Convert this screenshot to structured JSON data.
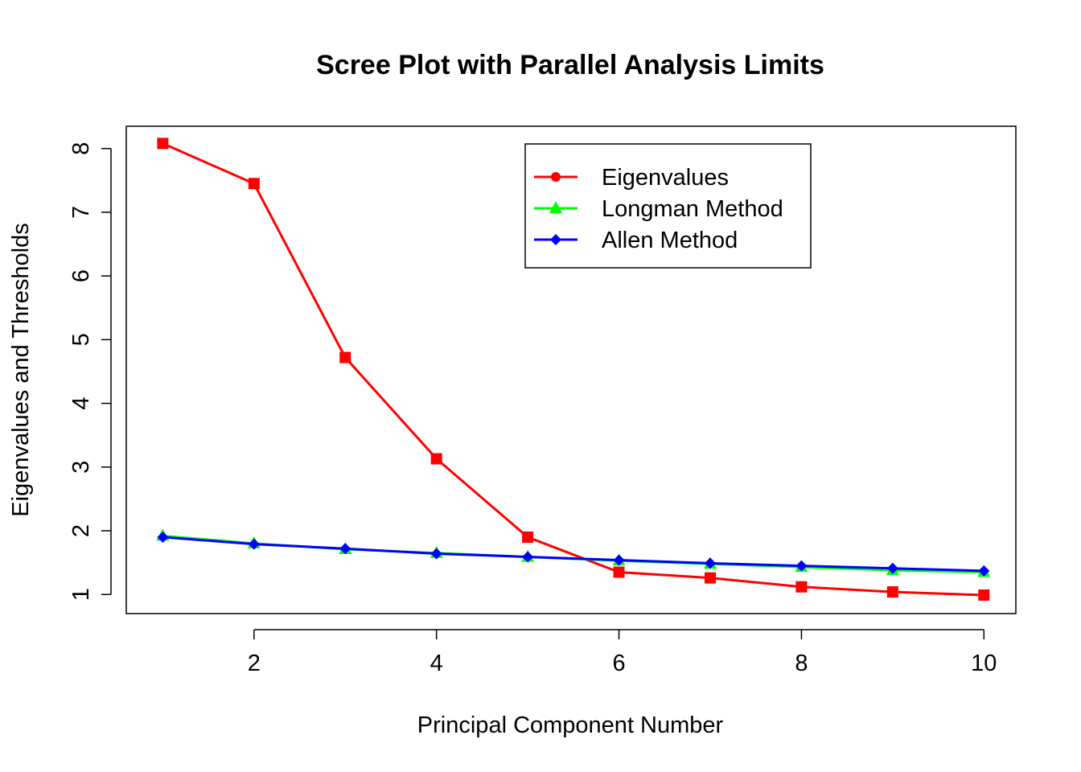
{
  "chart_data": {
    "type": "line",
    "title": "Scree Plot with Parallel Analysis Limits",
    "xlabel": "Principal Component Number",
    "ylabel": "Eigenvalues and Thresholds",
    "x": [
      1,
      2,
      3,
      4,
      5,
      6,
      7,
      8,
      9,
      10
    ],
    "xlim": [
      0.6,
      10.35
    ],
    "ylim": [
      0.7,
      8.35
    ],
    "xticks": [
      2,
      4,
      6,
      8,
      10
    ],
    "yticks": [
      1,
      2,
      3,
      4,
      5,
      6,
      7,
      8
    ],
    "grid": false,
    "legend_position": "top-right",
    "series": [
      {
        "name": "Eigenvalues",
        "color": "#ff0000",
        "marker": "square",
        "legend_marker": "circle",
        "values": [
          8.08,
          7.45,
          4.72,
          3.13,
          1.9,
          1.35,
          1.26,
          1.12,
          1.04,
          0.99
        ]
      },
      {
        "name": "Longman Method",
        "color": "#00ff00",
        "marker": "triangle",
        "legend_marker": "triangle",
        "values": [
          1.92,
          1.8,
          1.71,
          1.65,
          1.59,
          1.53,
          1.48,
          1.43,
          1.38,
          1.35
        ]
      },
      {
        "name": "Allen Method",
        "color": "#0000ff",
        "marker": "diamond",
        "legend_marker": "diamond",
        "values": [
          1.9,
          1.79,
          1.72,
          1.64,
          1.59,
          1.54,
          1.49,
          1.45,
          1.41,
          1.37
        ]
      }
    ]
  }
}
